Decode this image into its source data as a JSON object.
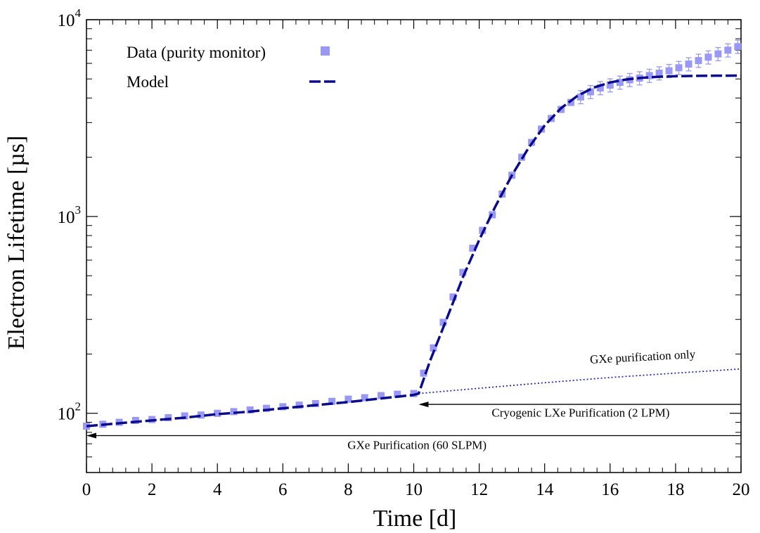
{
  "chart_data": {
    "type": "line",
    "title": "",
    "xlabel": "Time [d]",
    "ylabel": "Electron Lifetime [µs]",
    "xlim": [
      0,
      20
    ],
    "ylim": [
      50,
      10000
    ],
    "yscale": "log",
    "x_ticks": [
      "0",
      "2",
      "4",
      "6",
      "8",
      "10",
      "12",
      "14",
      "16",
      "18",
      "20"
    ],
    "y_ticks": [
      {
        "base": "10",
        "exp": "2",
        "value": 100
      },
      {
        "base": "10",
        "exp": "3",
        "value": 1000
      },
      {
        "base": "10",
        "exp": "4",
        "value": 10000
      }
    ],
    "legend": {
      "position": "top-left",
      "entries": [
        {
          "label": "Data (purity monitor)",
          "marker": "square",
          "color": "#9999f5"
        },
        {
          "label": "Model",
          "marker": "dashed-line",
          "color": "#0a0a8c"
        }
      ]
    },
    "series": [
      {
        "name": "Data (purity monitor)",
        "color": "#9999f5",
        "error_fraction": 0.035,
        "x": [
          0,
          0.5,
          1,
          1.5,
          2,
          2.5,
          3,
          3.5,
          4,
          4.5,
          5,
          5.5,
          6,
          6.5,
          7,
          7.5,
          8,
          8.5,
          9,
          9.5,
          10,
          10.3,
          10.6,
          10.9,
          11.2,
          11.5,
          11.8,
          12.1,
          12.4,
          12.7,
          13.0,
          13.3,
          13.6,
          13.9,
          14.2,
          14.5,
          14.8,
          15.1,
          15.4,
          15.7,
          16.0,
          16.3,
          16.6,
          16.9,
          17.2,
          17.5,
          17.8,
          18.1,
          18.4,
          18.7,
          19.0,
          19.3,
          19.6,
          19.9
        ],
        "y": [
          86,
          88,
          90,
          92,
          93,
          95,
          97,
          98,
          100,
          102,
          104,
          106,
          108,
          110,
          112,
          115,
          118,
          120,
          123,
          125,
          126,
          160,
          215,
          290,
          390,
          520,
          690,
          850,
          1020,
          1300,
          1620,
          2000,
          2380,
          2780,
          3150,
          3500,
          3800,
          4050,
          4300,
          4500,
          4650,
          4800,
          4950,
          5050,
          5200,
          5350,
          5500,
          5700,
          5950,
          6200,
          6450,
          6700,
          7000,
          7300
        ]
      },
      {
        "name": "Model",
        "color": "#0a0a8c",
        "x": [
          0,
          1,
          2,
          3,
          4,
          5,
          6,
          7,
          8,
          9,
          10,
          10.15,
          10.5,
          11,
          11.5,
          12,
          12.5,
          13,
          13.5,
          14,
          14.5,
          15,
          15.5,
          16,
          16.5,
          17,
          17.5,
          18,
          18.5,
          19,
          19.5,
          20
        ],
        "y": [
          86,
          89,
          92,
          95,
          99,
          102,
          106,
          110,
          114,
          119,
          124,
          126,
          185,
          300,
          490,
          760,
          1130,
          1620,
          2220,
          2900,
          3550,
          4100,
          4520,
          4800,
          4970,
          5070,
          5130,
          5160,
          5180,
          5190,
          5195,
          5200
        ]
      },
      {
        "name": "GXe purification only",
        "color": "#2a2ab0",
        "x": [
          10.15,
          12,
          14,
          16,
          18,
          20
        ],
        "y": [
          126,
          134,
          143,
          152,
          160,
          168
        ]
      }
    ],
    "annotations": [
      {
        "text": "GXe purification only",
        "x": 17,
        "y": 185,
        "rotate": -3
      },
      {
        "text": "Cryogenic LXe Purification (2 LPM)",
        "x": 15.1,
        "y": 96
      },
      {
        "text": "GXe Purification (60 SLPM)",
        "x": 10.1,
        "y": 66
      }
    ],
    "arrows": [
      {
        "label": "Cryogenic LXe Purification (2 LPM)",
        "from_x": 20,
        "to_x": 10.15,
        "y": 111
      },
      {
        "label": "GXe Purification (60 SLPM)",
        "from_x": 20,
        "to_x": 0,
        "y": 77
      }
    ]
  }
}
